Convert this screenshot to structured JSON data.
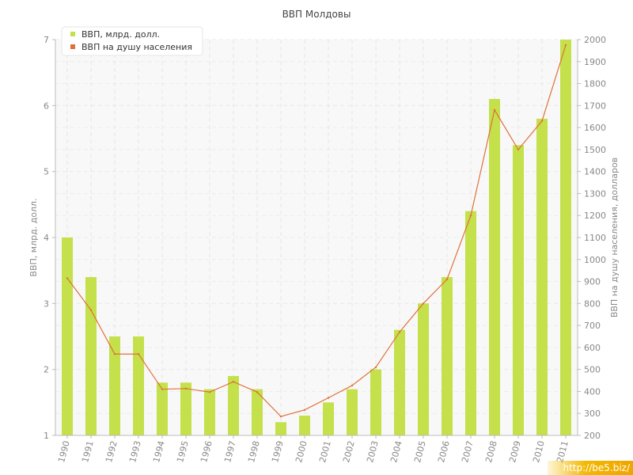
{
  "chart_data": {
    "type": "bar",
    "title": "ВВП Молдовы",
    "categories": [
      "1990",
      "1991",
      "1992",
      "1993",
      "1994",
      "1995",
      "1996",
      "1997",
      "1998",
      "1999",
      "2000",
      "2001",
      "2002",
      "2003",
      "2004",
      "2005",
      "2006",
      "2007",
      "2008",
      "2009",
      "2010",
      "2011"
    ],
    "series": [
      {
        "name": "ВВП, млрд. долл.",
        "type": "bar",
        "axis": "left",
        "color": "#c4e04a",
        "values": [
          4.0,
          3.4,
          2.5,
          2.5,
          1.8,
          1.8,
          1.7,
          1.9,
          1.7,
          1.2,
          1.3,
          1.5,
          1.7,
          2.0,
          2.6,
          3.0,
          3.4,
          4.4,
          6.1,
          5.4,
          5.8,
          7.0
        ]
      },
      {
        "name": "ВВП на душу населения",
        "type": "line",
        "axis": "right",
        "color": "#e0703a",
        "values": [
          915,
          770,
          570,
          570,
          410,
          413,
          397,
          444,
          397,
          286,
          316,
          371,
          427,
          510,
          670,
          800,
          910,
          1200,
          1680,
          1500,
          1630,
          1975
        ]
      }
    ],
    "y_left": {
      "label": "ВВП, млрд. долл.",
      "min": 1,
      "max": 7,
      "ticks": [
        "1",
        "2",
        "3",
        "4",
        "5",
        "6",
        "7"
      ]
    },
    "y_right": {
      "label": "ВВП на душу населения, долларов",
      "min": 200,
      "max": 2000,
      "ticks": [
        "200",
        "300",
        "400",
        "500",
        "600",
        "700",
        "800",
        "900",
        "1000",
        "1100",
        "1200",
        "1300",
        "1400",
        "1500",
        "1600",
        "1700",
        "1800",
        "1900",
        "2000"
      ]
    },
    "grid": true,
    "legend_position": "top-left"
  },
  "watermark": "http://be5.biz/"
}
